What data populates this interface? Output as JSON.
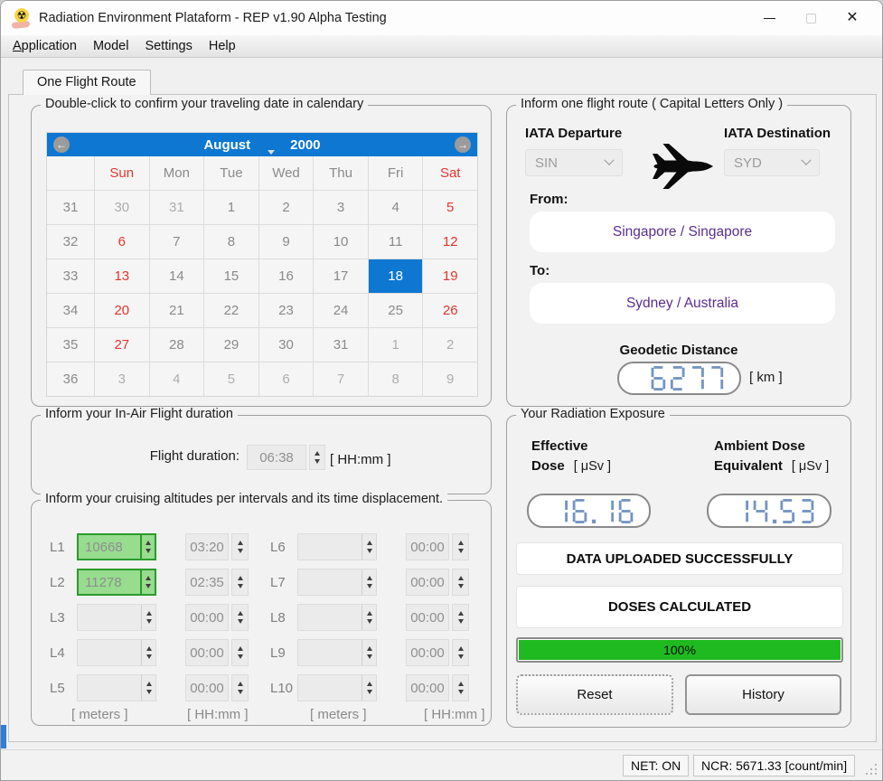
{
  "window": {
    "title": "Radiation Environment Plataform - REP v1.90 Alpha Testing"
  },
  "menu": {
    "items": [
      {
        "label": "Application",
        "underline_first": true
      },
      {
        "label": "Model",
        "underline_first": false
      },
      {
        "label": "Settings",
        "underline_first": false
      },
      {
        "label": "Help",
        "underline_first": false
      }
    ]
  },
  "tab": {
    "label": "One Flight Route"
  },
  "calendar": {
    "legend": "Double-click to confirm your traveling date in calendary",
    "month": "August",
    "year": "2000",
    "day_headers": [
      {
        "t": "",
        "cls": ""
      },
      {
        "t": "Sun",
        "cls": "we"
      },
      {
        "t": "Mon",
        "cls": ""
      },
      {
        "t": "Tue",
        "cls": ""
      },
      {
        "t": "Wed",
        "cls": ""
      },
      {
        "t": "Thu",
        "cls": ""
      },
      {
        "t": "Fri",
        "cls": ""
      },
      {
        "t": "Sat",
        "cls": "we"
      }
    ],
    "weeks": [
      {
        "num": "31",
        "days": [
          {
            "d": "30",
            "cls": "adj"
          },
          {
            "d": "31",
            "cls": "adj"
          },
          {
            "d": "1",
            "cls": ""
          },
          {
            "d": "2",
            "cls": ""
          },
          {
            "d": "3",
            "cls": ""
          },
          {
            "d": "4",
            "cls": ""
          },
          {
            "d": "5",
            "cls": "we"
          }
        ]
      },
      {
        "num": "32",
        "days": [
          {
            "d": "6",
            "cls": "we"
          },
          {
            "d": "7",
            "cls": ""
          },
          {
            "d": "8",
            "cls": ""
          },
          {
            "d": "9",
            "cls": ""
          },
          {
            "d": "10",
            "cls": ""
          },
          {
            "d": "11",
            "cls": ""
          },
          {
            "d": "12",
            "cls": "we"
          }
        ]
      },
      {
        "num": "33",
        "days": [
          {
            "d": "13",
            "cls": "we"
          },
          {
            "d": "14",
            "cls": ""
          },
          {
            "d": "15",
            "cls": ""
          },
          {
            "d": "16",
            "cls": ""
          },
          {
            "d": "17",
            "cls": ""
          },
          {
            "d": "18",
            "cls": "sel"
          },
          {
            "d": "19",
            "cls": "we"
          }
        ]
      },
      {
        "num": "34",
        "days": [
          {
            "d": "20",
            "cls": "we"
          },
          {
            "d": "21",
            "cls": ""
          },
          {
            "d": "22",
            "cls": ""
          },
          {
            "d": "23",
            "cls": ""
          },
          {
            "d": "24",
            "cls": ""
          },
          {
            "d": "25",
            "cls": ""
          },
          {
            "d": "26",
            "cls": "we"
          }
        ]
      },
      {
        "num": "35",
        "days": [
          {
            "d": "27",
            "cls": "we"
          },
          {
            "d": "28",
            "cls": ""
          },
          {
            "d": "29",
            "cls": ""
          },
          {
            "d": "30",
            "cls": ""
          },
          {
            "d": "31",
            "cls": ""
          },
          {
            "d": "1",
            "cls": "adj"
          },
          {
            "d": "2",
            "cls": "adj"
          }
        ]
      },
      {
        "num": "36",
        "days": [
          {
            "d": "3",
            "cls": "adj"
          },
          {
            "d": "4",
            "cls": "adj"
          },
          {
            "d": "5",
            "cls": "adj"
          },
          {
            "d": "6",
            "cls": "adj"
          },
          {
            "d": "7",
            "cls": "adj"
          },
          {
            "d": "8",
            "cls": "adj"
          },
          {
            "d": "9",
            "cls": "adj"
          }
        ]
      }
    ]
  },
  "duration": {
    "legend": "Inform your In-Air Flight duration",
    "label": "Flight duration:",
    "value": "06:38",
    "unit": "[ HH:mm ]"
  },
  "altitudes": {
    "legend": "Inform your cruising altitudes per intervals and its time displacement.",
    "meters_unit": "[ meters ]",
    "time_unit": "[ HH:mm ]",
    "rows": [
      {
        "label": "L1",
        "meters": "10668",
        "time": "03:20",
        "filled": true
      },
      {
        "label": "L2",
        "meters": "11278",
        "time": "02:35",
        "filled": true
      },
      {
        "label": "L3",
        "meters": "",
        "time": "00:00",
        "filled": false
      },
      {
        "label": "L4",
        "meters": "",
        "time": "00:00",
        "filled": false
      },
      {
        "label": "L5",
        "meters": "",
        "time": "00:00",
        "filled": false
      },
      {
        "label": "L6",
        "meters": "",
        "time": "00:00",
        "filled": false
      },
      {
        "label": "L7",
        "meters": "",
        "time": "00:00",
        "filled": false
      },
      {
        "label": "L8",
        "meters": "",
        "time": "00:00",
        "filled": false
      },
      {
        "label": "L9",
        "meters": "",
        "time": "00:00",
        "filled": false
      },
      {
        "label": "L10",
        "meters": "",
        "time": "00:00",
        "filled": false
      }
    ]
  },
  "route": {
    "legend": "Inform one flight route ( Capital Letters Only )",
    "departure_label": "IATA Departure",
    "destination_label": "IATA Destination",
    "departure_code": "SIN",
    "destination_code": "SYD",
    "from_label": "From:",
    "from_value": "Singapore / Singapore",
    "to_label": "To:",
    "to_value": "Sydney / Australia",
    "distance_label": "Geodetic Distance",
    "distance_unit": "[ km ]"
  },
  "exposure": {
    "legend": "Your Radiation Exposure",
    "effective_line1": "Effective",
    "effective_line2": "Dose",
    "ambient_line1": "Ambient Dose",
    "ambient_line2": "Equivalent",
    "dose_unit": "[ μSv ]",
    "status_upload": "DATA UPLOADED SUCCESSFULLY",
    "status_doses": "DOSES CALCULATED",
    "progress_text": "100%",
    "reset_label": "Reset",
    "history_label": "History"
  },
  "displays": {
    "geodetic_distance": "6277",
    "effective_dose": "16.16",
    "ambient_dose_equivalent": "14.53"
  },
  "statusbar": {
    "net": "NET: ON",
    "ncr": "NCR: 5671.33 [count/min]"
  },
  "colors": {
    "accent_blue": "#0e77d2",
    "weekend_red": "#e5352b",
    "highlight_green": "#97dc8f",
    "highlight_green_border": "#2c9b2c",
    "progress_green": "#1fba1f",
    "lcd_blue": "#7495c2",
    "route_purple": "#5c2d91"
  },
  "icons": {
    "app": "radiation-hand-icon",
    "plane": "airplane-icon"
  }
}
